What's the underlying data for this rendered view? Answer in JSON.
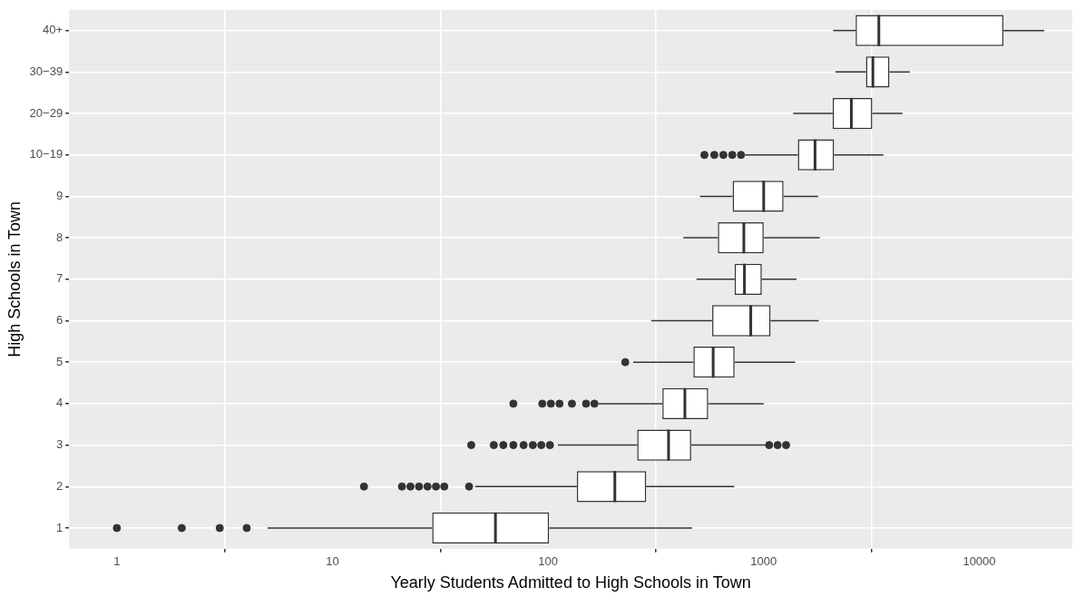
{
  "chart_data": {
    "type": "box",
    "orientation": "horizontal",
    "log": "x",
    "grid": true,
    "xlabel": "Yearly Students Admitted to High Schools in Town",
    "ylabel": "High Schools in Town",
    "categories": [
      "40+",
      "30−39",
      "20−29",
      "10−19",
      "9",
      "8",
      "7",
      "6",
      "5",
      "4",
      "3",
      "2",
      "1"
    ],
    "xlim": [
      0.62,
      27000
    ],
    "xticks": [
      1,
      10,
      100,
      1000,
      10000
    ],
    "boxes": [
      {
        "low": 2100,
        "q1": 2670,
        "median": 3420,
        "q3": 12950,
        "high": 20000
      },
      {
        "low": 2150,
        "q1": 2980,
        "median": 3210,
        "q3": 3830,
        "high": 4760
      },
      {
        "low": 1370,
        "q1": 2090,
        "median": 2550,
        "q3": 3190,
        "high": 4400
      },
      {
        "low": 820,
        "q1": 1440,
        "median": 1730,
        "q3": 2120,
        "high": 3590,
        "outliers": [
          531,
          590,
          650,
          715,
          785
        ]
      },
      {
        "low": 506,
        "q1": 718,
        "median": 1000,
        "q3": 1236,
        "high": 1790
      },
      {
        "low": 424,
        "q1": 613,
        "median": 809,
        "q3": 1000,
        "high": 1820
      },
      {
        "low": 488,
        "q1": 733,
        "median": 814,
        "q3": 980,
        "high": 1420
      },
      {
        "low": 301,
        "q1": 577,
        "median": 871,
        "q3": 1076,
        "high": 1800
      },
      {
        "low": 248,
        "q1": 472,
        "median": 583,
        "q3": 733,
        "high": 1400,
        "outliers": [
          228
        ]
      },
      {
        "low": 171,
        "q1": 339,
        "median": 431,
        "q3": 553,
        "high": 1000,
        "outliers": [
          69,
          94,
          103,
          113,
          129,
          150,
          164
        ]
      },
      {
        "low": 111,
        "q1": 259,
        "median": 362,
        "q3": 461,
        "high": 1020,
        "outliers": [
          44,
          56,
          62,
          69,
          77,
          85,
          93,
          102,
          1060,
          1160,
          1270
        ]
      },
      {
        "low": 46,
        "q1": 136,
        "median": 204,
        "q3": 285,
        "high": 730,
        "outliers": [
          14,
          21,
          23,
          25.2,
          27.6,
          30.2,
          33,
          43
        ]
      },
      {
        "low": 5,
        "q1": 29,
        "median": 57,
        "q3": 101,
        "high": 466,
        "outliers": [
          1,
          2,
          3,
          4
        ]
      }
    ]
  }
}
